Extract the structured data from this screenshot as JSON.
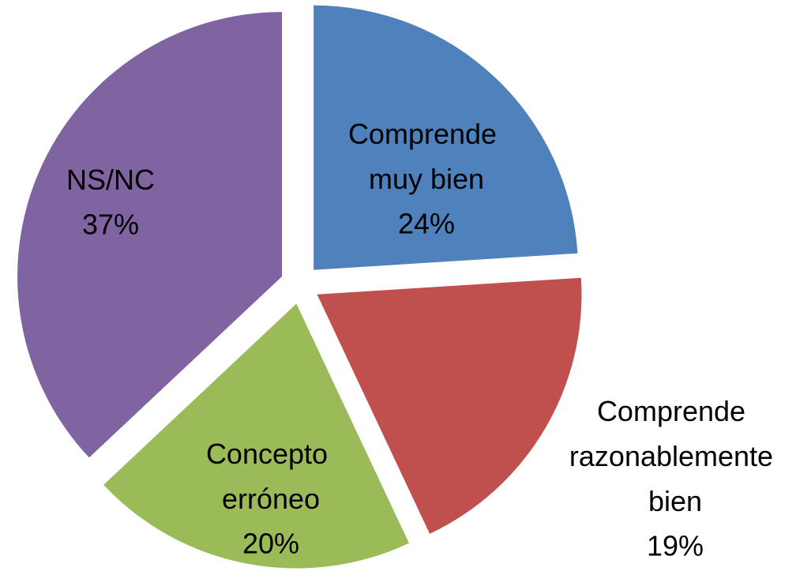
{
  "chart_data": {
    "type": "pie",
    "categories": [
      "Comprende muy bien",
      "Comprende razonablemente bien",
      "Concepto erróneo",
      "NS/NC"
    ],
    "values": [
      24,
      19,
      20,
      37
    ],
    "value_labels": [
      "24%",
      "19%",
      "20%",
      "37%"
    ],
    "colors": [
      "#4f81bd",
      "#c0504d",
      "#9bbb59",
      "#8064a2"
    ]
  }
}
